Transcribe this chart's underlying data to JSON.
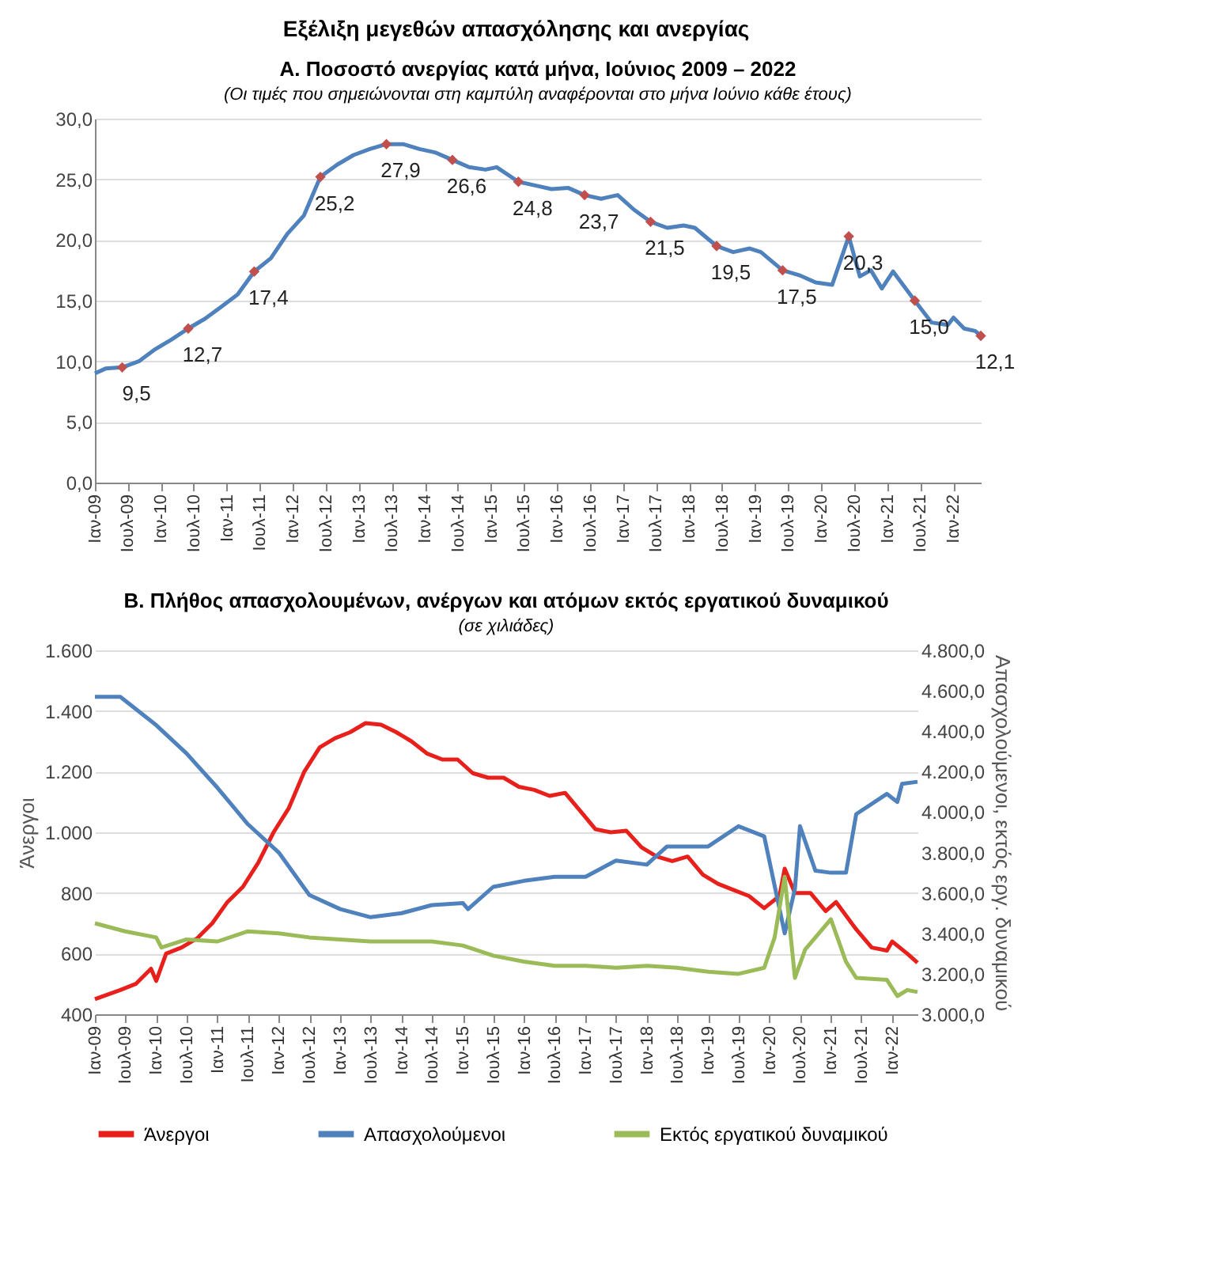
{
  "chart_data": [
    {
      "type": "line",
      "title": "Α. Ποσοστό ανεργίας κατά μήνα, Ιούνιος 2009 – 2022",
      "subtitle": "(Οι τιμές που σημειώνονται στη καμπύλη αναφέρονται στο μήνα Ιούνιο κάθε έτους)",
      "annotations": [
        "Εξέλιξη μεγεθών απασχόλησης και ανεργίας"
      ],
      "xlim": [
        "2009-01",
        "2022-06"
      ],
      "xticks": [
        {
          "value": "2009-01",
          "label": "Ιαν-09"
        },
        {
          "value": "2009-07",
          "label": "Ιουλ-09"
        },
        {
          "value": "2010-01",
          "label": "Ιαν-10"
        },
        {
          "value": "2010-07",
          "label": "Ιουλ-10"
        },
        {
          "value": "2011-01",
          "label": "Ιαν-11"
        },
        {
          "value": "2011-07",
          "label": "Ιουλ-11"
        },
        {
          "value": "2012-01",
          "label": "Ιαν-12"
        },
        {
          "value": "2012-07",
          "label": "Ιουλ-12"
        },
        {
          "value": "2013-01",
          "label": "Ιαν-13"
        },
        {
          "value": "2013-07",
          "label": "Ιουλ-13"
        },
        {
          "value": "2014-01",
          "label": "Ιαν-14"
        },
        {
          "value": "2014-07",
          "label": "Ιουλ-14"
        },
        {
          "value": "2015-01",
          "label": "Ιαν-15"
        },
        {
          "value": "2015-07",
          "label": "Ιουλ-15"
        },
        {
          "value": "2016-01",
          "label": "Ιαν-16"
        },
        {
          "value": "2016-07",
          "label": "Ιουλ-16"
        },
        {
          "value": "2017-01",
          "label": "Ιαν-17"
        },
        {
          "value": "2017-07",
          "label": "Ιουλ-17"
        },
        {
          "value": "2018-01",
          "label": "Ιαν-18"
        },
        {
          "value": "2018-07",
          "label": "Ιουλ-18"
        },
        {
          "value": "2019-01",
          "label": "Ιαν-19"
        },
        {
          "value": "2019-07",
          "label": "Ιουλ-19"
        },
        {
          "value": "2020-01",
          "label": "Ιαν-20"
        },
        {
          "value": "2020-07",
          "label": "Ιουλ-20"
        },
        {
          "value": "2021-01",
          "label": "Ιαν-21"
        },
        {
          "value": "2021-07",
          "label": "Ιουλ-21"
        },
        {
          "value": "2022-01",
          "label": "Ιαν-22"
        }
      ],
      "ylim": [
        0,
        30
      ],
      "yticks": [
        {
          "value": 0,
          "label": "0,0"
        },
        {
          "value": 5,
          "label": "5,0"
        },
        {
          "value": 10,
          "label": "10,0"
        },
        {
          "value": 15,
          "label": "15,0"
        },
        {
          "value": 20,
          "label": "20,0"
        },
        {
          "value": 25,
          "label": "25,0"
        },
        {
          "value": 30,
          "label": "30,0"
        }
      ],
      "grid": "y",
      "series": [
        {
          "type": "line",
          "color": "#4f81bd",
          "x": [
            "2009-01",
            "2009-03",
            "2009-06",
            "2009-09",
            "2009-12",
            "2010-03",
            "2010-06",
            "2010-09",
            "2010-12",
            "2011-03",
            "2011-06",
            "2011-09",
            "2011-12",
            "2012-03",
            "2012-06",
            "2012-09",
            "2012-12",
            "2013-03",
            "2013-06",
            "2013-09",
            "2013-12",
            "2014-03",
            "2014-06",
            "2014-09",
            "2014-12",
            "2015-02",
            "2015-06",
            "2015-09",
            "2015-12",
            "2016-03",
            "2016-06",
            "2016-09",
            "2016-12",
            "2017-03",
            "2017-06",
            "2017-09",
            "2017-12",
            "2018-02",
            "2018-06",
            "2018-09",
            "2018-12",
            "2019-02",
            "2019-06",
            "2019-09",
            "2019-12",
            "2020-03",
            "2020-06",
            "2020-08",
            "2020-10",
            "2020-12",
            "2021-02",
            "2021-06",
            "2021-09",
            "2021-12",
            "2022-01",
            "2022-03",
            "2022-05",
            "2022-06"
          ],
          "values": [
            9.0,
            9.4,
            9.5,
            10.0,
            11.0,
            11.8,
            12.7,
            13.5,
            14.5,
            15.5,
            17.4,
            18.5,
            20.5,
            22.0,
            25.2,
            26.2,
            27.0,
            27.5,
            27.9,
            27.9,
            27.5,
            27.2,
            26.6,
            26.0,
            25.8,
            26.0,
            24.8,
            24.5,
            24.2,
            24.3,
            23.7,
            23.4,
            23.7,
            22.5,
            21.5,
            21.0,
            21.2,
            21.0,
            19.5,
            19.0,
            19.3,
            19.0,
            17.5,
            17.1,
            16.5,
            16.3,
            20.3,
            17.0,
            17.5,
            16.0,
            17.4,
            15.0,
            13.2,
            13.0,
            13.6,
            12.7,
            12.5,
            12.1
          ]
        },
        {
          "type": "scatter",
          "marker": "diamond",
          "color": "#c0504d",
          "x": [
            "2009-06",
            "2010-06",
            "2011-06",
            "2012-06",
            "2013-06",
            "2014-06",
            "2015-06",
            "2016-06",
            "2017-06",
            "2018-06",
            "2019-06",
            "2020-06",
            "2021-06",
            "2022-06"
          ],
          "values": [
            9.5,
            12.7,
            17.4,
            25.2,
            27.9,
            26.6,
            24.8,
            23.7,
            21.5,
            19.5,
            17.5,
            20.3,
            15.0,
            12.1
          ],
          "value_labels": [
            "9,5",
            "12,7",
            "17,4",
            "25,2",
            "27,9",
            "26,6",
            "24,8",
            "23,7",
            "21,5",
            "19,5",
            "17,5",
            "20,3",
            "15,0",
            "12,1"
          ]
        }
      ]
    },
    {
      "type": "line",
      "title": "Β. Πλήθος απασχολουμένων, ανέργων και ατόμων εκτός εργατικού δυναμικού",
      "subtitle": "(σε χιλιάδες)",
      "ylabel": "Άνεργοι",
      "y2label": "Απασχολούμενοι, εκτός εργ. δυναμικού",
      "xlim": [
        "2009-01",
        "2022-06"
      ],
      "xticks": [
        {
          "value": "2009-01",
          "label": "Ιαν-09"
        },
        {
          "value": "2009-07",
          "label": "Ιουλ-09"
        },
        {
          "value": "2010-01",
          "label": "Ιαν-10"
        },
        {
          "value": "2010-07",
          "label": "Ιουλ-10"
        },
        {
          "value": "2011-01",
          "label": "Ιαν-11"
        },
        {
          "value": "2011-07",
          "label": "Ιουλ-11"
        },
        {
          "value": "2012-01",
          "label": "Ιαν-12"
        },
        {
          "value": "2012-07",
          "label": "Ιουλ-12"
        },
        {
          "value": "2013-01",
          "label": "Ιαν-13"
        },
        {
          "value": "2013-07",
          "label": "Ιουλ-13"
        },
        {
          "value": "2014-01",
          "label": "Ιαν-14"
        },
        {
          "value": "2014-07",
          "label": "Ιουλ-14"
        },
        {
          "value": "2015-01",
          "label": "Ιαν-15"
        },
        {
          "value": "2015-07",
          "label": "Ιουλ-15"
        },
        {
          "value": "2016-01",
          "label": "Ιαν-16"
        },
        {
          "value": "2016-07",
          "label": "Ιουλ-16"
        },
        {
          "value": "2017-01",
          "label": "Ιαν-17"
        },
        {
          "value": "2017-07",
          "label": "Ιουλ-17"
        },
        {
          "value": "2018-01",
          "label": "Ιαν-18"
        },
        {
          "value": "2018-07",
          "label": "Ιουλ-18"
        },
        {
          "value": "2019-01",
          "label": "Ιαν-19"
        },
        {
          "value": "2019-07",
          "label": "Ιουλ-19"
        },
        {
          "value": "2020-01",
          "label": "Ιαν-20"
        },
        {
          "value": "2020-07",
          "label": "Ιουλ-20"
        },
        {
          "value": "2021-01",
          "label": "Ιαν-21"
        },
        {
          "value": "2021-07",
          "label": "Ιουλ-21"
        },
        {
          "value": "2022-01",
          "label": "Ιαν-22"
        }
      ],
      "ylim": [
        400,
        1600
      ],
      "yticks": [
        {
          "value": 400,
          "label": "400"
        },
        {
          "value": 600,
          "label": "600"
        },
        {
          "value": 800,
          "label": "800"
        },
        {
          "value": 1000,
          "label": "1.000"
        },
        {
          "value": 1200,
          "label": "1.200"
        },
        {
          "value": 1400,
          "label": "1.400"
        },
        {
          "value": 1600,
          "label": "1.600"
        }
      ],
      "y2lim": [
        3000,
        4800
      ],
      "y2ticks": [
        {
          "value": 3000,
          "label": "3.000,0"
        },
        {
          "value": 3200,
          "label": "3.200,0"
        },
        {
          "value": 3400,
          "label": "3.400,0"
        },
        {
          "value": 3600,
          "label": "3.600,0"
        },
        {
          "value": 3800,
          "label": "3.800,0"
        },
        {
          "value": 4000,
          "label": "4.000,0"
        },
        {
          "value": 4200,
          "label": "4.200,0"
        },
        {
          "value": 4400,
          "label": "4.400,0"
        },
        {
          "value": 4600,
          "label": "4.600,0"
        },
        {
          "value": 4800,
          "label": "4.800,0"
        }
      ],
      "grid": "y",
      "legend": "bottom",
      "series": [
        {
          "name": "Άνεργοι",
          "color": "#e8201c",
          "x": [
            "2009-01",
            "2009-06",
            "2009-09",
            "2009-12",
            "2010-01",
            "2010-03",
            "2010-06",
            "2010-09",
            "2010-12",
            "2011-03",
            "2011-06",
            "2011-09",
            "2011-12",
            "2012-03",
            "2012-06",
            "2012-09",
            "2012-12",
            "2013-03",
            "2013-06",
            "2013-09",
            "2013-12",
            "2014-03",
            "2014-06",
            "2014-09",
            "2014-12",
            "2015-03",
            "2015-06",
            "2015-09",
            "2015-12",
            "2016-03",
            "2016-06",
            "2016-09",
            "2016-12",
            "2017-03",
            "2017-06",
            "2017-09",
            "2017-12",
            "2018-03",
            "2018-06",
            "2018-09",
            "2018-12",
            "2019-03",
            "2019-06",
            "2019-09",
            "2019-12",
            "2020-03",
            "2020-04",
            "2020-06",
            "2020-09",
            "2020-12",
            "2021-02",
            "2021-06",
            "2021-09",
            "2021-12",
            "2022-01",
            "2022-04",
            "2022-06"
          ],
          "values": [
            450,
            480,
            500,
            550,
            510,
            600,
            620,
            650,
            700,
            770,
            820,
            900,
            1000,
            1080,
            1200,
            1280,
            1310,
            1330,
            1360,
            1355,
            1330,
            1300,
            1260,
            1240,
            1240,
            1195,
            1180,
            1180,
            1150,
            1140,
            1120,
            1130,
            1070,
            1010,
            1000,
            1005,
            950,
            920,
            905,
            920,
            860,
            830,
            810,
            790,
            750,
            790,
            880,
            800,
            800,
            740,
            770,
            680,
            620,
            610,
            640,
            600,
            570
          ]
        },
        {
          "name": "Απασχολούμενοι",
          "axis": "y2",
          "color": "#4f81bd",
          "x": [
            "2009-01",
            "2009-06",
            "2010-01",
            "2010-07",
            "2011-01",
            "2011-07",
            "2012-01",
            "2012-07",
            "2013-01",
            "2013-07",
            "2014-01",
            "2014-07",
            "2015-01",
            "2015-02",
            "2015-07",
            "2016-01",
            "2016-07",
            "2017-01",
            "2017-07",
            "2018-01",
            "2018-05",
            "2019-01",
            "2019-07",
            "2019-12",
            "2020-04",
            "2020-06",
            "2020-07",
            "2020-10",
            "2021-01",
            "2021-04",
            "2021-06",
            "2021-12",
            "2022-02",
            "2022-03",
            "2022-06"
          ],
          "values": [
            4570,
            4570,
            4430,
            4290,
            4120,
            3940,
            3800,
            3590,
            3520,
            3480,
            3500,
            3540,
            3550,
            3520,
            3630,
            3660,
            3680,
            3680,
            3760,
            3740,
            3830,
            3830,
            3930,
            3880,
            3400,
            3620,
            3930,
            3710,
            3700,
            3700,
            3990,
            4090,
            4050,
            4140,
            4150
          ]
        },
        {
          "name": "Εκτός εργατικού δυναμικού",
          "axis": "y2",
          "color": "#9bbb59",
          "x": [
            "2009-01",
            "2009-07",
            "2010-01",
            "2010-02",
            "2010-07",
            "2011-01",
            "2011-07",
            "2012-01",
            "2012-07",
            "2013-07",
            "2014-07",
            "2015-01",
            "2015-07",
            "2016-01",
            "2016-07",
            "2017-01",
            "2017-07",
            "2018-01",
            "2018-07",
            "2019-01",
            "2019-07",
            "2019-12",
            "2020-02",
            "2020-04",
            "2020-06",
            "2020-08",
            "2020-11",
            "2021-01",
            "2021-04",
            "2021-06",
            "2021-12",
            "2022-02",
            "2022-04",
            "2022-06"
          ],
          "values": [
            3450,
            3410,
            3380,
            3330,
            3370,
            3360,
            3410,
            3400,
            3380,
            3360,
            3360,
            3340,
            3290,
            3260,
            3240,
            3240,
            3230,
            3240,
            3230,
            3210,
            3200,
            3230,
            3380,
            3680,
            3180,
            3320,
            3410,
            3470,
            3260,
            3180,
            3170,
            3090,
            3120,
            3110
          ]
        }
      ]
    }
  ]
}
